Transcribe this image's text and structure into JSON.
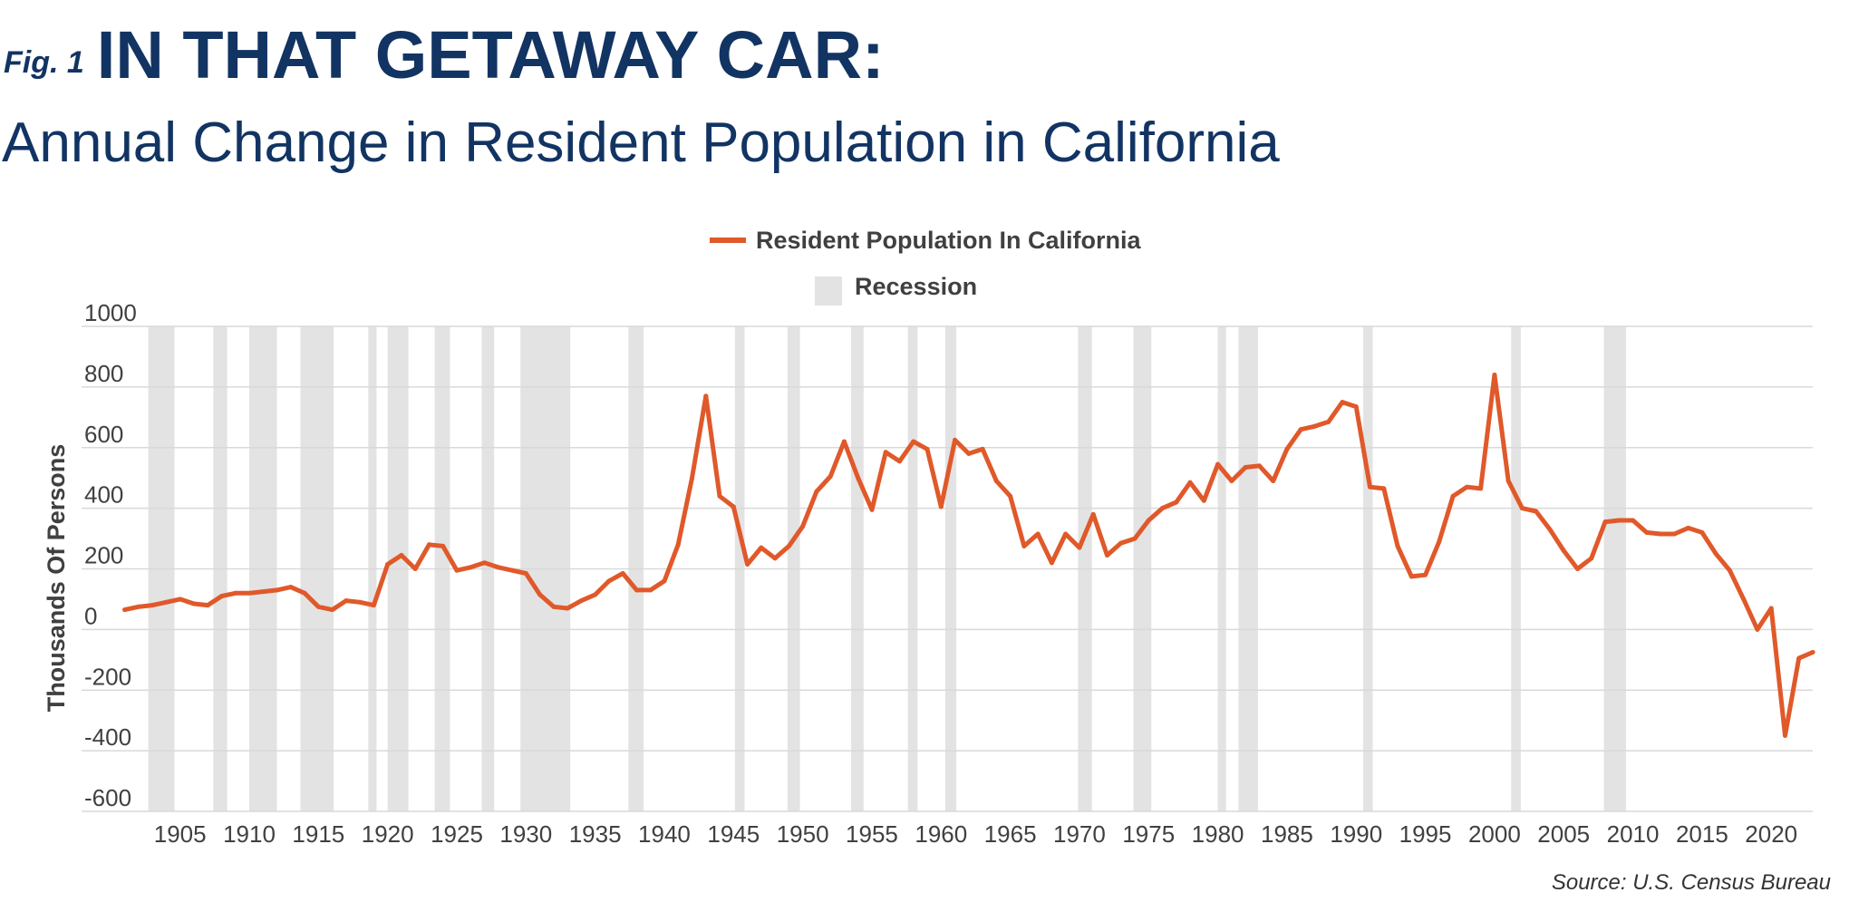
{
  "header": {
    "fig_label": "Fig. 1",
    "title": "IN THAT GETAWAY CAR:",
    "subtitle": "Annual Change in Resident Population in California"
  },
  "source": "Source: U.S. Census Bureau",
  "colors": {
    "line": "#e0592a",
    "recession": "#e3e3e3",
    "title": "#123463",
    "grid": "#d9d9d9",
    "text": "#404040"
  },
  "chart_data": {
    "type": "line",
    "ylabel": "Thousands Of Persons",
    "ylim": [
      -600,
      1000
    ],
    "yticks": [
      1000,
      800,
      600,
      400,
      200,
      0,
      -200,
      -400,
      -600
    ],
    "xlim": [
      1900.5,
      2023
    ],
    "xticks": [
      1905,
      1910,
      1915,
      1920,
      1925,
      1930,
      1935,
      1940,
      1945,
      1950,
      1955,
      1960,
      1965,
      1970,
      1975,
      1980,
      1985,
      1990,
      1995,
      2000,
      2005,
      2010,
      2015,
      2020
    ],
    "grid": true,
    "legend": [
      {
        "label": "Resident Population In California",
        "kind": "line"
      },
      {
        "label": "Recession",
        "kind": "area"
      }
    ],
    "series": [
      {
        "name": "Resident Population In California",
        "x": [
          1901,
          1902,
          1903,
          1904,
          1905,
          1906,
          1907,
          1908,
          1909,
          1910,
          1911,
          1912,
          1913,
          1914,
          1915,
          1916,
          1917,
          1918,
          1919,
          1920,
          1921,
          1922,
          1923,
          1924,
          1925,
          1926,
          1927,
          1928,
          1929,
          1930,
          1931,
          1932,
          1933,
          1934,
          1935,
          1936,
          1937,
          1938,
          1939,
          1940,
          1941,
          1942,
          1943,
          1944,
          1945,
          1946,
          1947,
          1948,
          1949,
          1950,
          1951,
          1952,
          1953,
          1954,
          1955,
          1956,
          1957,
          1958,
          1959,
          1960,
          1961,
          1962,
          1963,
          1964,
          1965,
          1966,
          1967,
          1968,
          1969,
          1970,
          1971,
          1972,
          1973,
          1974,
          1975,
          1976,
          1977,
          1978,
          1979,
          1980,
          1981,
          1982,
          1983,
          1984,
          1985,
          1986,
          1987,
          1988,
          1989,
          1990,
          1991,
          1992,
          1993,
          1994,
          1995,
          1996,
          1997,
          1998,
          1999,
          2000,
          2001,
          2002,
          2003,
          2004,
          2005,
          2006,
          2007,
          2008,
          2009,
          2010,
          2011,
          2012,
          2013,
          2014,
          2015,
          2016,
          2017,
          2018,
          2019,
          2020,
          2021,
          2022,
          2023
        ],
        "values": [
          65,
          75,
          80,
          90,
          100,
          85,
          80,
          110,
          120,
          120,
          125,
          130,
          140,
          120,
          75,
          65,
          95,
          90,
          80,
          215,
          245,
          200,
          280,
          275,
          195,
          205,
          220,
          205,
          195,
          185,
          115,
          75,
          70,
          95,
          115,
          160,
          185,
          130,
          130,
          160,
          280,
          500,
          770,
          440,
          405,
          215,
          270,
          235,
          275,
          340,
          455,
          505,
          620,
          500,
          395,
          585,
          555,
          620,
          595,
          405,
          625,
          580,
          595,
          490,
          440,
          275,
          315,
          220,
          315,
          270,
          380,
          245,
          285,
          300,
          360,
          400,
          420,
          485,
          425,
          545,
          490,
          535,
          540,
          490,
          595,
          660,
          670,
          685,
          750,
          735,
          470,
          465,
          275,
          175,
          180,
          290,
          440,
          470,
          465,
          840,
          490,
          400,
          390,
          330,
          260,
          200,
          235,
          355,
          360,
          360,
          320,
          315,
          315,
          335,
          320,
          250,
          195,
          100,
          0,
          70,
          -350,
          -95,
          -75
        ]
      }
    ],
    "recessions": [
      [
        1902.7,
        1904.6
      ],
      [
        1907.4,
        1908.4
      ],
      [
        1910.0,
        1912.0
      ],
      [
        1913.7,
        1916.1
      ],
      [
        1918.6,
        1919.2
      ],
      [
        1920.0,
        1921.5
      ],
      [
        1923.4,
        1924.5
      ],
      [
        1926.8,
        1927.7
      ],
      [
        1929.6,
        1933.2
      ],
      [
        1937.4,
        1938.5
      ],
      [
        1945.1,
        1945.8
      ],
      [
        1948.9,
        1949.8
      ],
      [
        1953.5,
        1954.4
      ],
      [
        1957.6,
        1958.3
      ],
      [
        1960.3,
        1961.1
      ],
      [
        1969.9,
        1970.9
      ],
      [
        1973.9,
        1975.2
      ],
      [
        1980.0,
        1980.6
      ],
      [
        1981.5,
        1982.9
      ],
      [
        1990.5,
        1991.2
      ],
      [
        2001.2,
        2001.9
      ],
      [
        2007.9,
        2009.5
      ]
    ]
  }
}
